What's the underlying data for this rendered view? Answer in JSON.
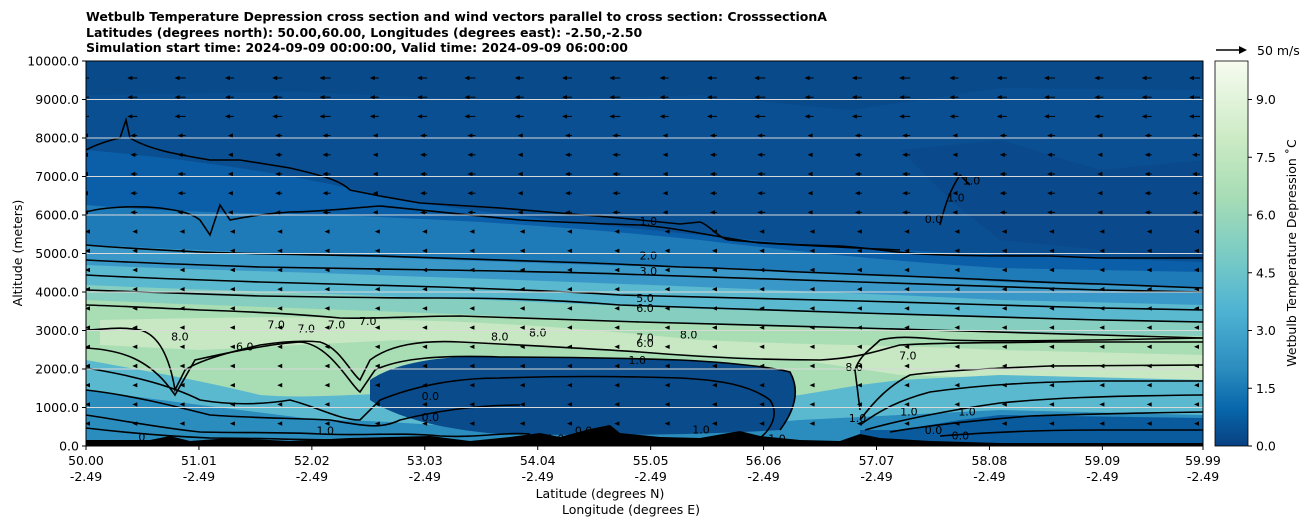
{
  "chart_data": {
    "type": "contour",
    "title_lines": [
      "Wetbulb Temperature Depression cross section and wind vectors parallel to cross section: CrosssectionA",
      "Latitudes (degrees north): 50.00,60.00, Longitudes (degrees east): -2.50,-2.50",
      "Simulation start time: 2024-09-09 00:00:00, Valid time: 2024-09-09 06:00:00"
    ],
    "ylabel": "Altitude (meters)",
    "xlabel_line1": "Latitude (degrees N)",
    "xlabel_line2": "Longitude (degrees E)",
    "ylim": [
      0,
      10000
    ],
    "y_ticks": [
      "0.0",
      "1000.0",
      "2000.0",
      "3000.0",
      "4000.0",
      "5000.0",
      "6000.0",
      "7000.0",
      "8000.0",
      "9000.0",
      "10000.0"
    ],
    "x_ticks_lat": [
      "50.00",
      "51.01",
      "52.02",
      "53.03",
      "54.04",
      "55.05",
      "56.06",
      "57.07",
      "58.08",
      "59.09",
      "59.99"
    ],
    "x_ticks_lon": [
      "-2.49",
      "-2.49",
      "-2.49",
      "-2.49",
      "-2.49",
      "-2.49",
      "-2.49",
      "-2.49",
      "-2.49",
      "-2.49",
      "-2.49"
    ],
    "xlim": [
      50.0,
      59.99
    ],
    "grid": "horizontal",
    "colorbar": {
      "label": "Wetbulb Temperature Depression ˚C",
      "ticks": [
        "0.0",
        "1.5",
        "3.0",
        "4.5",
        "6.0",
        "7.5",
        "9.0"
      ],
      "range": [
        0,
        10
      ],
      "colormap": "GnBu_r"
    },
    "quiver_key": {
      "label": "50 m/s",
      "value": 50
    },
    "contour_levels": [
      0,
      1,
      2,
      3,
      4,
      5,
      6,
      7,
      8
    ],
    "contour_labels": [
      {
        "text": "1.0",
        "lat": 55.03,
        "alt": 5850
      },
      {
        "text": "2.0",
        "lat": 55.03,
        "alt": 4950
      },
      {
        "text": "3.0",
        "lat": 55.03,
        "alt": 4550
      },
      {
        "text": "5.0",
        "lat": 55.0,
        "alt": 3850
      },
      {
        "text": "6.0",
        "lat": 55.0,
        "alt": 3580
      },
      {
        "text": "7.0",
        "lat": 55.0,
        "alt": 2820
      },
      {
        "text": "6.0",
        "lat": 55.0,
        "alt": 2680
      },
      {
        "text": "1.0",
        "lat": 54.93,
        "alt": 2240
      },
      {
        "text": "8.0",
        "lat": 50.84,
        "alt": 2850
      },
      {
        "text": "6.0",
        "lat": 51.42,
        "alt": 2580
      },
      {
        "text": "7.0",
        "lat": 51.7,
        "alt": 3150
      },
      {
        "text": "7.0",
        "lat": 51.97,
        "alt": 3050
      },
      {
        "text": "7.0",
        "lat": 52.24,
        "alt": 3150
      },
      {
        "text": "7.0",
        "lat": 52.52,
        "alt": 3250
      },
      {
        "text": "8.0",
        "lat": 53.7,
        "alt": 2850
      },
      {
        "text": "8.0",
        "lat": 54.04,
        "alt": 2950
      },
      {
        "text": "8.0",
        "lat": 55.39,
        "alt": 2900
      },
      {
        "text": "0.0",
        "lat": 53.08,
        "alt": 1300
      },
      {
        "text": "0.0",
        "lat": 53.08,
        "alt": 750
      },
      {
        "text": "1.0",
        "lat": 52.14,
        "alt": 400
      },
      {
        "text": "0.0",
        "lat": 54.45,
        "alt": 400
      },
      {
        "text": "1.0",
        "lat": 54.2,
        "alt": 200
      },
      {
        "text": "1.0",
        "lat": 55.5,
        "alt": 430
      },
      {
        "text": "1.0",
        "lat": 56.18,
        "alt": 200
      },
      {
        "text": "8.0",
        "lat": 56.87,
        "alt": 2050
      },
      {
        "text": "7.0",
        "lat": 57.35,
        "alt": 2350
      },
      {
        "text": "1.0",
        "lat": 56.9,
        "alt": 730
      },
      {
        "text": "1.0",
        "lat": 57.36,
        "alt": 900
      },
      {
        "text": "1.0",
        "lat": 57.88,
        "alt": 900
      },
      {
        "text": "0.0",
        "lat": 57.58,
        "alt": 420
      },
      {
        "text": "0.0",
        "lat": 57.82,
        "alt": 270
      },
      {
        "text": "1.0",
        "lat": 57.92,
        "alt": 6900
      },
      {
        "text": "1.0",
        "lat": 57.78,
        "alt": 6450
      },
      {
        "text": "0.0",
        "lat": 57.58,
        "alt": 5900
      },
      {
        "text": "0",
        "lat": 50.5,
        "alt": 230
      },
      {
        "text": "1.0",
        "lat": 50.75,
        "alt": 120
      }
    ]
  }
}
